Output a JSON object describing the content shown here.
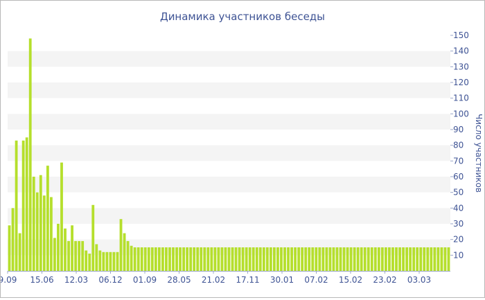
{
  "chart_data": {
    "type": "bar",
    "title": "Динамика участников беседы",
    "xlabel": "",
    "ylabel": "Число участников",
    "ylim": [
      0,
      150
    ],
    "yticks": [
      10,
      20,
      30,
      40,
      50,
      60,
      70,
      80,
      90,
      100,
      110,
      120,
      130,
      140,
      150
    ],
    "xtick_labels": [
      "9.09",
      "15.06",
      "12.03",
      "06.12",
      "01.09",
      "28.05",
      "21.02",
      "17.11",
      "30.01",
      "07.02",
      "15.02",
      "23.02",
      "03.03"
    ],
    "grid": true,
    "y_axis_position": "right",
    "bar_color": "#b5df2c",
    "values": [
      29,
      40,
      83,
      24,
      83,
      85,
      148,
      60,
      50,
      61,
      48,
      67,
      47,
      21,
      30,
      69,
      27,
      19,
      29,
      19,
      19,
      19,
      13,
      11,
      42,
      17,
      13,
      12,
      12,
      12,
      12,
      12,
      33,
      24,
      19,
      16,
      15,
      15,
      15,
      15,
      15,
      15,
      15,
      15,
      15,
      15,
      15,
      15,
      15,
      15,
      15,
      15,
      15,
      15,
      15,
      15,
      15,
      15,
      15,
      15,
      15,
      15,
      15,
      15,
      15,
      15,
      15,
      15,
      15,
      15,
      15,
      15,
      15,
      15,
      15,
      15,
      15,
      15,
      15,
      15,
      15,
      15,
      15,
      15,
      15,
      15,
      15,
      15,
      15,
      15,
      15,
      15,
      15,
      15,
      15,
      15,
      15,
      15,
      15,
      15,
      15,
      15,
      15,
      15,
      15,
      15,
      15,
      15,
      15,
      15,
      15,
      15,
      15,
      15,
      15,
      15,
      15,
      15,
      15,
      15,
      15,
      15,
      15,
      15,
      15,
      15,
      15
    ]
  }
}
